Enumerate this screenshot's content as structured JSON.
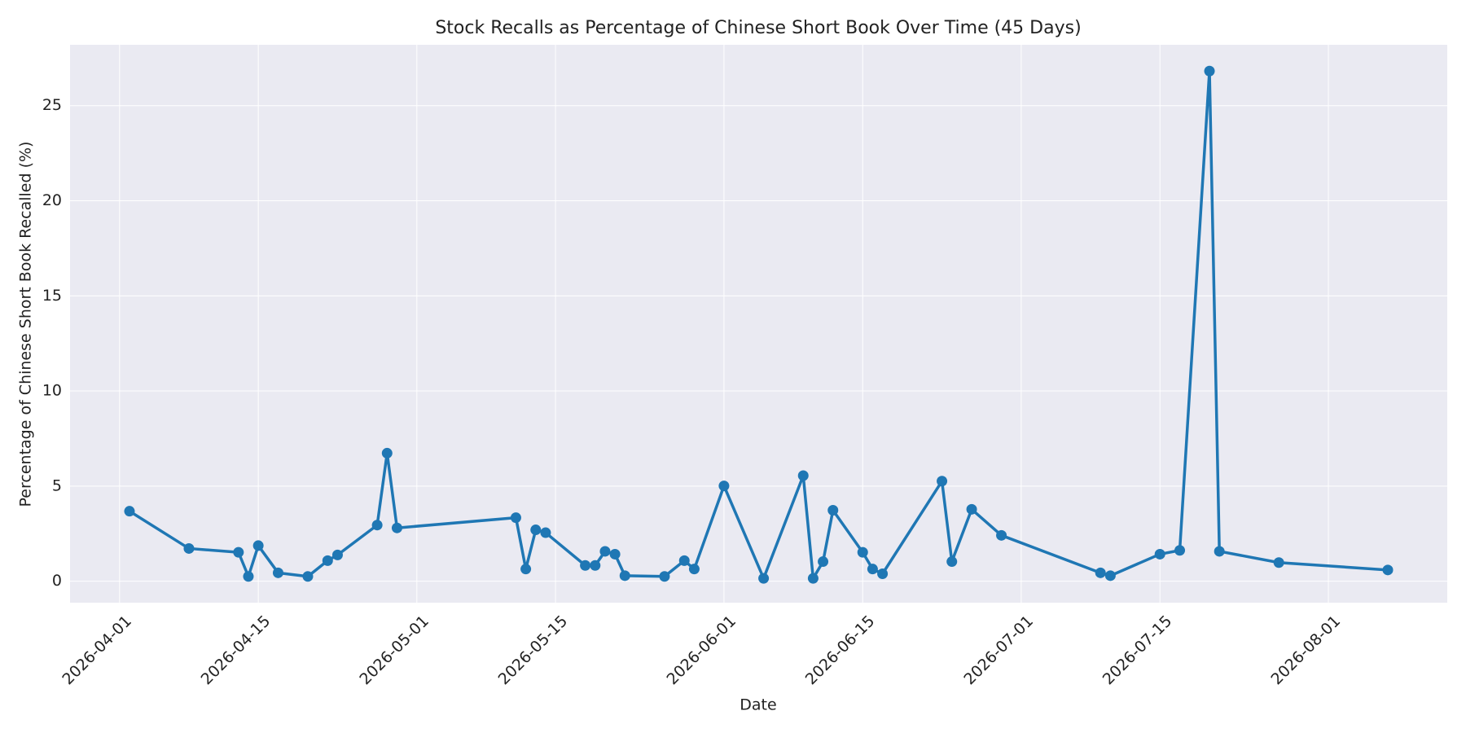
{
  "chart_data": {
    "type": "line",
    "title": "Stock Recalls as Percentage of Chinese Short Book Over Time (45 Days)",
    "x_label": "Date",
    "y_label": "Percentage of Chinese Short Book Recalled (%)",
    "x": [
      "2026-04-02",
      "2026-04-08",
      "2026-04-13",
      "2026-04-14",
      "2026-04-15",
      "2026-04-17",
      "2026-04-20",
      "2026-04-22",
      "2026-04-23",
      "2026-04-27",
      "2026-04-28",
      "2026-04-29",
      "2026-05-11",
      "2026-05-12",
      "2026-05-13",
      "2026-05-14",
      "2026-05-18",
      "2026-05-19",
      "2026-05-20",
      "2026-05-21",
      "2026-05-22",
      "2026-05-26",
      "2026-05-28",
      "2026-05-29",
      "2026-06-01",
      "2026-06-05",
      "2026-06-09",
      "2026-06-10",
      "2026-06-11",
      "2026-06-12",
      "2026-06-15",
      "2026-06-16",
      "2026-06-17",
      "2026-06-23",
      "2026-06-24",
      "2026-06-26",
      "2026-06-29",
      "2026-07-09",
      "2026-07-10",
      "2026-07-15",
      "2026-07-17",
      "2026-07-20",
      "2026-07-21",
      "2026-07-27",
      "2026-08-07"
    ],
    "values": [
      3.68,
      1.72,
      1.52,
      0.25,
      1.87,
      0.44,
      0.25,
      1.08,
      1.38,
      2.95,
      6.73,
      2.8,
      3.34,
      0.64,
      2.7,
      2.55,
      0.83,
      0.83,
      1.57,
      1.42,
      0.29,
      0.25,
      1.08,
      0.64,
      5.01,
      0.15,
      5.55,
      0.15,
      1.03,
      3.73,
      1.52,
      0.64,
      0.39,
      5.26,
      1.03,
      3.78,
      2.41,
      0.44,
      0.29,
      1.42,
      1.62,
      26.82,
      1.57,
      0.98,
      0.59
    ],
    "color": "#1f77b4",
    "xlim": [
      "2026-03-27",
      "2026-08-13"
    ],
    "xticks": [
      "2026-04-01",
      "2026-04-15",
      "2026-05-01",
      "2026-05-15",
      "2026-06-01",
      "2026-06-15",
      "2026-07-01",
      "2026-07-15",
      "2026-08-01"
    ],
    "ylim": [
      -1.13,
      28.2
    ],
    "yticks": [
      0,
      5,
      10,
      15,
      20,
      25
    ],
    "grid": true
  }
}
